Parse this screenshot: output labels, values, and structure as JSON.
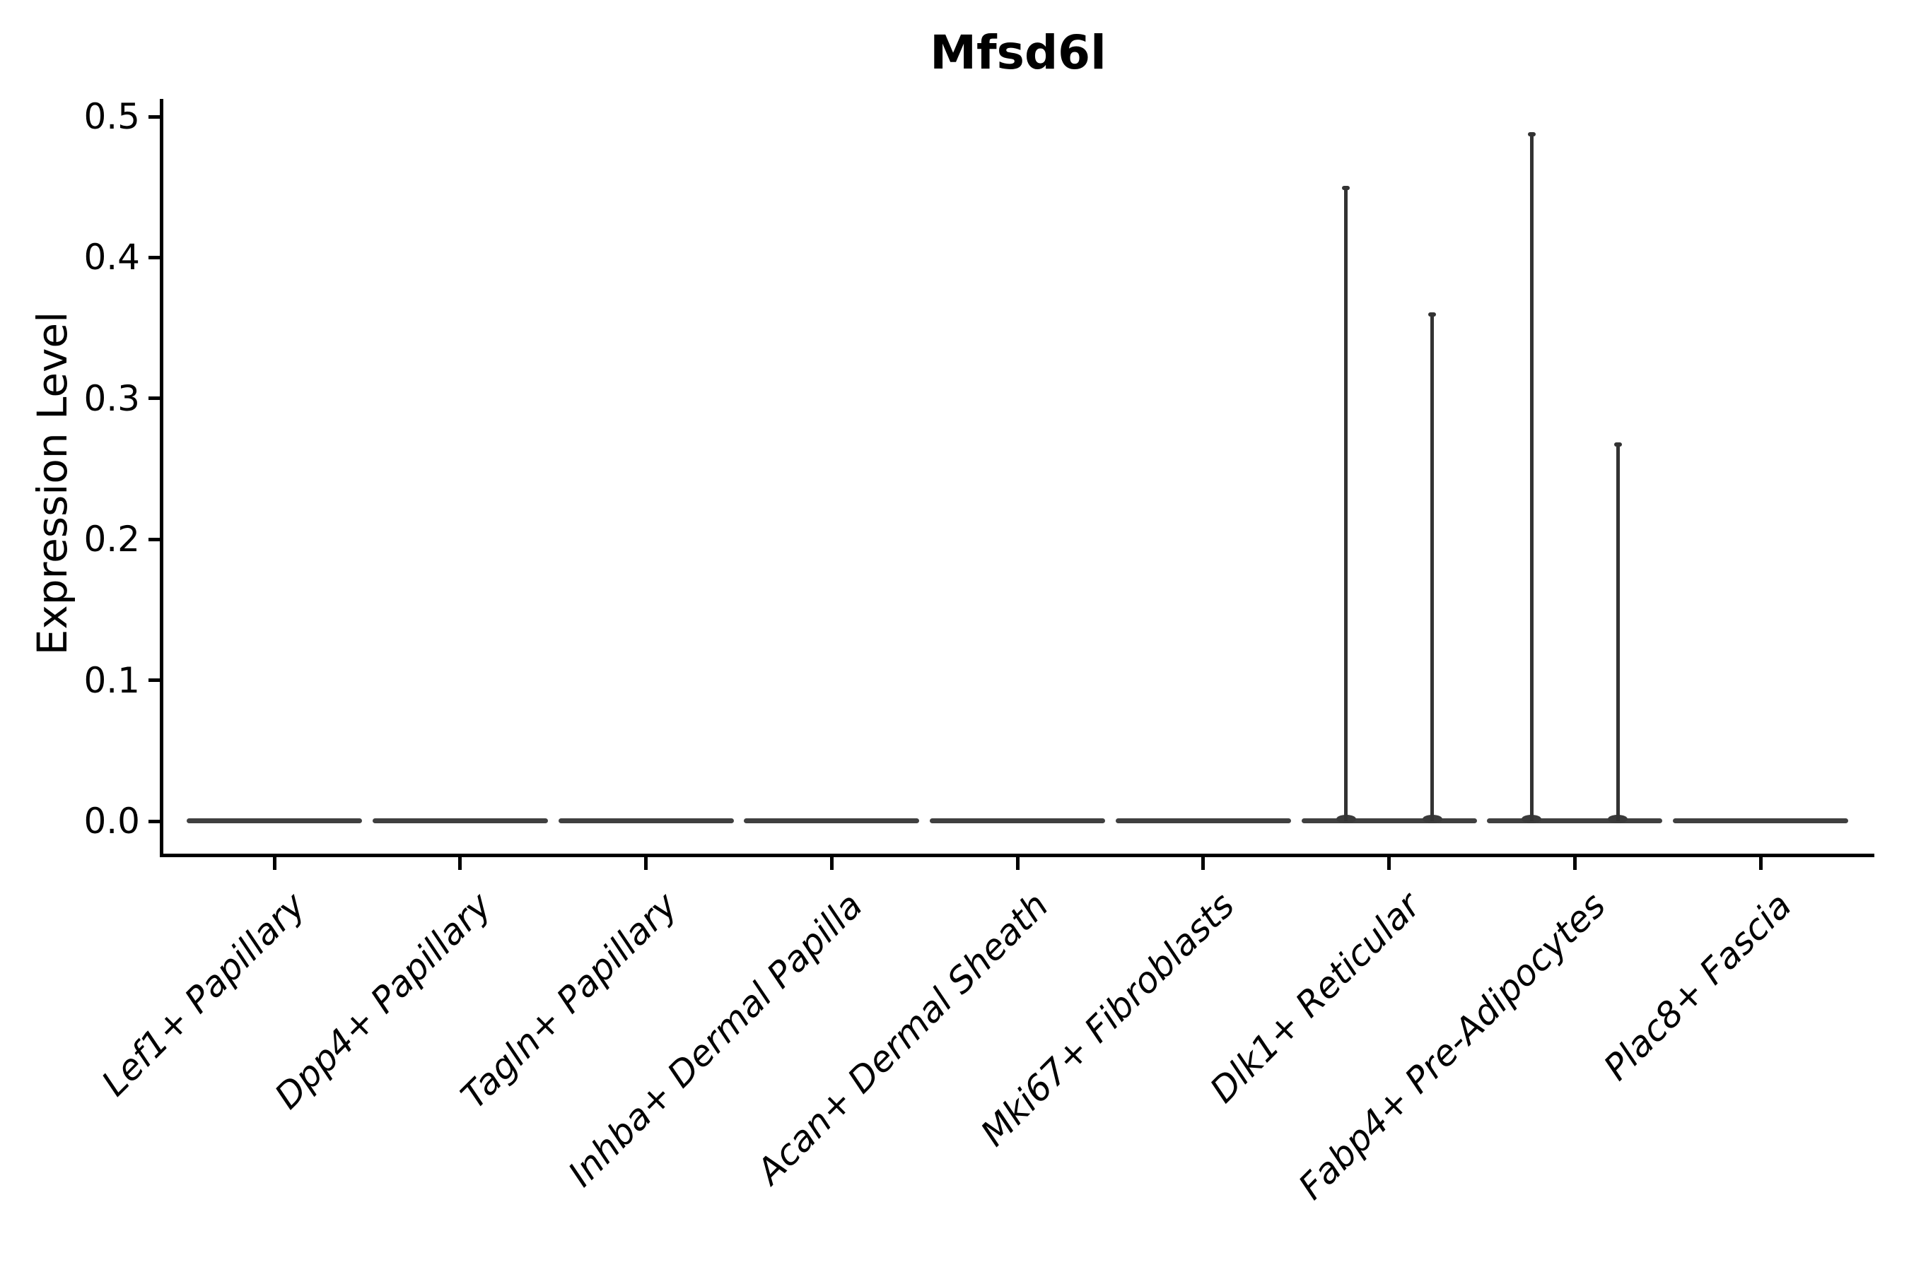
{
  "figure": {
    "background_color": "#ffffff",
    "axis_color": "#000000",
    "violin_color": "#3a3a3a"
  },
  "chart_data": {
    "type": "violin",
    "title": "Mfsd6l",
    "xlabel": "",
    "ylabel": "Expression Level",
    "ylim": [
      0.0,
      0.5
    ],
    "yticks": [
      0.0,
      0.1,
      0.2,
      0.3,
      0.4,
      0.5
    ],
    "grid": false,
    "legend": false,
    "categories": [
      "Lef1+ Papillary",
      "Dpp4+ Papillary",
      "Tagln+ Papillary",
      "Inhba+ Dermal Papilla",
      "Acan+ Dermal Sheath",
      "Mki67+ Fibroblasts",
      "Dlk1+ Reticular",
      "Fabp4+ Pre-Adipocytes",
      "Plac8+ Fascia"
    ],
    "violins": [
      {
        "category": "Lef1+ Papillary",
        "bulk_at": 0.0,
        "spikes": []
      },
      {
        "category": "Dpp4+ Papillary",
        "bulk_at": 0.0,
        "spikes": []
      },
      {
        "category": "Tagln+ Papillary",
        "bulk_at": 0.0,
        "spikes": []
      },
      {
        "category": "Inhba+ Dermal Papilla",
        "bulk_at": 0.0,
        "spikes": []
      },
      {
        "category": "Acan+ Dermal Sheath",
        "bulk_at": 0.0,
        "spikes": []
      },
      {
        "category": "Mki67+ Fibroblasts",
        "bulk_at": 0.0,
        "spikes": []
      },
      {
        "category": "Dlk1+ Reticular",
        "bulk_at": 0.0,
        "spikes": [
          {
            "side": "left",
            "max": 0.45
          },
          {
            "side": "right",
            "max": 0.36
          }
        ]
      },
      {
        "category": "Fabp4+ Pre-Adipocytes",
        "bulk_at": 0.0,
        "spikes": [
          {
            "side": "left",
            "max": 0.488
          },
          {
            "side": "right",
            "max": 0.268
          }
        ]
      },
      {
        "category": "Plac8+ Fascia",
        "bulk_at": 0.0,
        "spikes": []
      }
    ]
  }
}
